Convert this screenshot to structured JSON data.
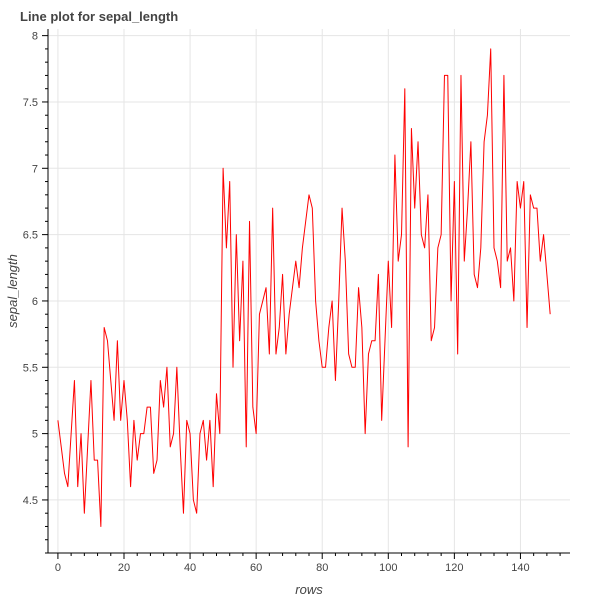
{
  "chart_data": {
    "type": "line",
    "title": "Line plot for sepal_length",
    "xlabel": "rows",
    "ylabel": "sepal_length",
    "xlim": [
      -3,
      155
    ],
    "ylim": [
      4.1,
      8.05
    ],
    "x_ticks": [
      0,
      20,
      40,
      60,
      80,
      100,
      120,
      140
    ],
    "x_tick_labels": [
      "0",
      "20",
      "40",
      "60",
      "80",
      "100",
      "120",
      "140"
    ],
    "y_ticks": [
      4.5,
      5,
      5.5,
      6,
      6.5,
      7,
      7.5,
      8
    ],
    "y_tick_labels": [
      "4.5",
      "5",
      "5.5",
      "6",
      "6.5",
      "7",
      "7.5",
      "8"
    ],
    "grid": true,
    "series": [
      {
        "color": "#ff0000",
        "x_start": 0,
        "x_step": 1,
        "values": [
          5.1,
          4.9,
          4.7,
          4.6,
          5.0,
          5.4,
          4.6,
          5.0,
          4.4,
          4.9,
          5.4,
          4.8,
          4.8,
          4.3,
          5.8,
          5.7,
          5.4,
          5.1,
          5.7,
          5.1,
          5.4,
          5.1,
          4.6,
          5.1,
          4.8,
          5.0,
          5.0,
          5.2,
          5.2,
          4.7,
          4.8,
          5.4,
          5.2,
          5.5,
          4.9,
          5.0,
          5.5,
          4.9,
          4.4,
          5.1,
          5.0,
          4.5,
          4.4,
          5.0,
          5.1,
          4.8,
          5.1,
          4.6,
          5.3,
          5.0,
          7.0,
          6.4,
          6.9,
          5.5,
          6.5,
          5.7,
          6.3,
          4.9,
          6.6,
          5.2,
          5.0,
          5.9,
          6.0,
          6.1,
          5.6,
          6.7,
          5.6,
          5.8,
          6.2,
          5.6,
          5.9,
          6.1,
          6.3,
          6.1,
          6.4,
          6.6,
          6.8,
          6.7,
          6.0,
          5.7,
          5.5,
          5.5,
          5.8,
          6.0,
          5.4,
          6.0,
          6.7,
          6.3,
          5.6,
          5.5,
          5.5,
          6.1,
          5.8,
          5.0,
          5.6,
          5.7,
          5.7,
          6.2,
          5.1,
          5.7,
          6.3,
          5.8,
          7.1,
          6.3,
          6.5,
          7.6,
          4.9,
          7.3,
          6.7,
          7.2,
          6.5,
          6.4,
          6.8,
          5.7,
          5.8,
          6.4,
          6.5,
          7.7,
          7.7,
          6.0,
          6.9,
          5.6,
          7.7,
          6.3,
          6.7,
          7.2,
          6.2,
          6.1,
          6.4,
          7.2,
          7.4,
          7.9,
          6.4,
          6.3,
          6.1,
          7.7,
          6.3,
          6.4,
          6.0,
          6.9,
          6.7,
          6.9,
          5.8,
          6.8,
          6.7,
          6.7,
          6.3,
          6.5,
          6.2,
          5.9
        ]
      }
    ]
  }
}
